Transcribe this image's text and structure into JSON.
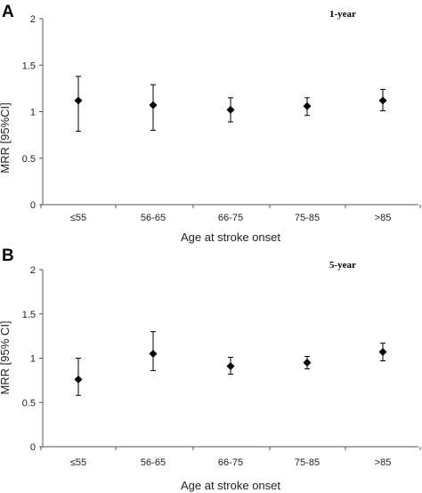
{
  "chart_data": [
    {
      "type": "scatter",
      "panel": "A",
      "title": "1-year",
      "xlabel": "Age at stroke onset",
      "ylabel": "MRR [95%CI]",
      "categories": [
        "≤55",
        "56-65",
        "66-75",
        "75-85",
        ">85"
      ],
      "series": [
        {
          "values": [
            1.12,
            1.07,
            1.02,
            1.06,
            1.12
          ],
          "ci_low": [
            0.79,
            0.8,
            0.89,
            0.96,
            1.01
          ],
          "ci_high": [
            1.38,
            1.29,
            1.15,
            1.15,
            1.24
          ]
        }
      ],
      "ylim": [
        0,
        2
      ],
      "yticks": [
        "0",
        "0.5",
        "1",
        "1.5",
        "2"
      ],
      "grid": false,
      "marker": "diamond",
      "marker_color": "#000000"
    },
    {
      "type": "scatter",
      "panel": "B",
      "title": "5-year",
      "xlabel": "Age at stroke onset",
      "ylabel": "MRR [95% CI]",
      "categories": [
        "≤55",
        "56-65",
        "66-75",
        "75-85",
        ">85"
      ],
      "series": [
        {
          "values": [
            0.76,
            1.05,
            0.91,
            0.95,
            1.07
          ],
          "ci_low": [
            0.58,
            0.86,
            0.82,
            0.88,
            0.97
          ],
          "ci_high": [
            1.0,
            1.3,
            1.01,
            1.02,
            1.17
          ]
        }
      ],
      "ylim": [
        0,
        2
      ],
      "yticks": [
        "0",
        "0.5",
        "1",
        "1.5",
        "2"
      ],
      "grid": false,
      "marker": "diamond",
      "marker_color": "#000000"
    }
  ]
}
